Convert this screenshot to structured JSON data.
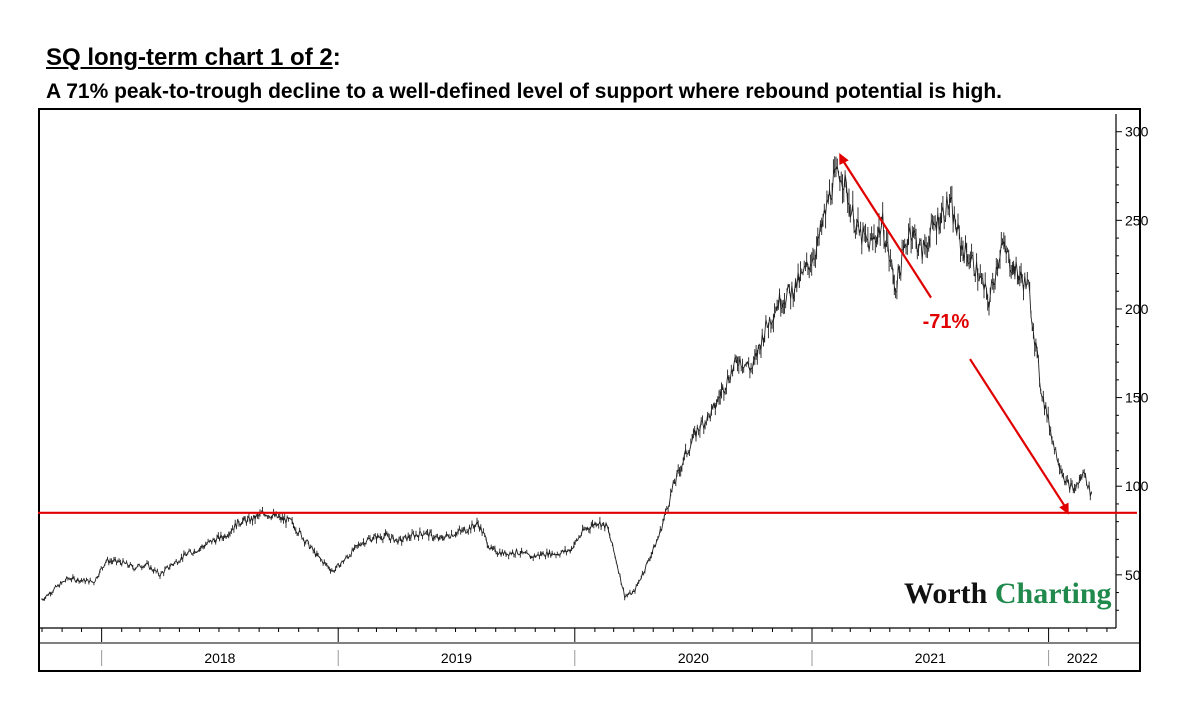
{
  "title": "SQ long-term chart 1 of 2",
  "title_suffix": ":",
  "subtitle": "A 71% peak-to-trough decline to a well-defined level of support where rebound potential is high.",
  "logo": {
    "part1": "Worth",
    "part2": "Charting"
  },
  "chart_data": {
    "type": "line",
    "title": "SQ long-term chart 1 of 2",
    "subtitle": "A 71% peak-to-trough decline to a well-defined level of support where rebound potential is high.",
    "xlabel": "",
    "ylabel": "",
    "ylim": [
      20,
      310
    ],
    "yticks": [
      50,
      100,
      150,
      200,
      250,
      300
    ],
    "xlim": [
      "2017-10-01",
      "2022-04-15"
    ],
    "x_tick_labels": [
      "2018",
      "2019",
      "2020",
      "2021",
      "2022"
    ],
    "grid": false,
    "series": [
      {
        "x": [
          "2017-10-01",
          "2017-10-20",
          "2017-11-10",
          "2017-12-01",
          "2017-12-20",
          "2018-01-08",
          "2018-02-01",
          "2018-02-20",
          "2018-03-10",
          "2018-04-01",
          "2018-04-20",
          "2018-05-10",
          "2018-06-01",
          "2018-06-20",
          "2018-07-10",
          "2018-08-01",
          "2018-08-20",
          "2018-09-10",
          "2018-10-01",
          "2018-10-20",
          "2018-11-10",
          "2018-12-01",
          "2018-12-24",
          "2019-01-15",
          "2019-02-05",
          "2019-02-25",
          "2019-03-15",
          "2019-04-05",
          "2019-04-25",
          "2019-05-15",
          "2019-06-05",
          "2019-06-25",
          "2019-07-15",
          "2019-08-05",
          "2019-08-25",
          "2019-09-15",
          "2019-10-05",
          "2019-10-25",
          "2019-11-15",
          "2019-12-05",
          "2019-12-25",
          "2020-01-15",
          "2020-02-05",
          "2020-02-20",
          "2020-03-05",
          "2020-03-18",
          "2020-04-01",
          "2020-04-20",
          "2020-05-10",
          "2020-06-01",
          "2020-06-20",
          "2020-07-10",
          "2020-08-01",
          "2020-08-20",
          "2020-09-10",
          "2020-10-01",
          "2020-10-20",
          "2020-11-10",
          "2020-12-01",
          "2020-12-20",
          "2021-01-10",
          "2021-02-01",
          "2021-02-15",
          "2021-03-01",
          "2021-03-15",
          "2021-04-01",
          "2021-04-20",
          "2021-05-10",
          "2021-06-01",
          "2021-06-20",
          "2021-07-10",
          "2021-08-01",
          "2021-08-20",
          "2021-09-10",
          "2021-10-01",
          "2021-10-20",
          "2021-11-10",
          "2021-12-01",
          "2021-12-20",
          "2022-01-10",
          "2022-01-28",
          "2022-02-10",
          "2022-02-25",
          "2022-03-10"
        ],
        "values": [
          36,
          42,
          48,
          47,
          46,
          58,
          57,
          54,
          56,
          50,
          56,
          61,
          65,
          69,
          72,
          80,
          81,
          85,
          82,
          80,
          70,
          60,
          52,
          60,
          68,
          71,
          72,
          69,
          72,
          74,
          70,
          73,
          75,
          79,
          64,
          62,
          63,
          60,
          62,
          62,
          64,
          75,
          80,
          77,
          58,
          38,
          40,
          55,
          72,
          100,
          118,
          133,
          142,
          158,
          172,
          166,
          188,
          204,
          210,
          220,
          236,
          270,
          278,
          258,
          242,
          236,
          248,
          212,
          246,
          232,
          248,
          260,
          235,
          224,
          204,
          236,
          222,
          212,
          156,
          122,
          102,
          98,
          108,
          92
        ]
      }
    ],
    "annotations": [
      {
        "type": "hline",
        "y": 85,
        "color": "#e00000",
        "label": ""
      },
      {
        "type": "arrow",
        "label": "-71%",
        "from": {
          "x": "2021-02-12",
          "y": 288
        },
        "to": {
          "x": "2022-02-01",
          "y": 84
        },
        "color": "#e00000"
      }
    ],
    "colors": {
      "price": "#222222",
      "support": "#e00000",
      "annotation": "#e00000"
    }
  }
}
